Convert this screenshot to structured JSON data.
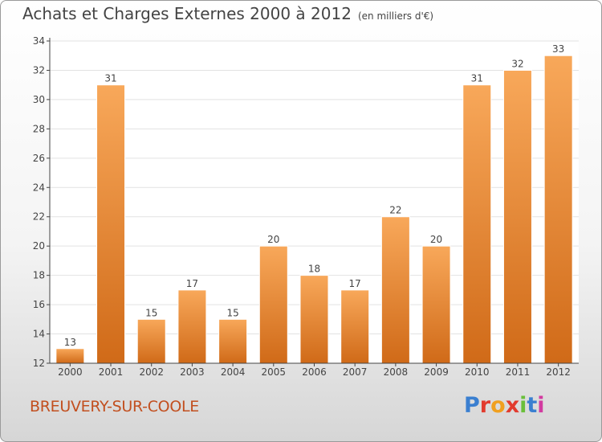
{
  "title": "Achats et Charges Externes 2000 à 2012",
  "unit_note": "(en milliers d'€)",
  "commune": "BREUVERY-SUR-COOLE",
  "logo": {
    "text": "Proxiti",
    "letters": [
      "P",
      "r",
      "o",
      "x",
      "i",
      "t",
      "i"
    ],
    "colors": [
      "#3a7fd0",
      "#e23b2e",
      "#f0a020",
      "#e23b2e",
      "#6abf3a",
      "#3a7fd0",
      "#d23ba0"
    ]
  },
  "colors": {
    "bar_light": "#f8a85a",
    "bar_dark": "#d06a18",
    "axis": "#444444",
    "grid": "#e2e2e2",
    "commune_text": "#c24f1f"
  },
  "chart_data": {
    "type": "bar",
    "categories": [
      "2000",
      "2001",
      "2002",
      "2003",
      "2004",
      "2005",
      "2006",
      "2007",
      "2008",
      "2009",
      "2010",
      "2011",
      "2012"
    ],
    "values": [
      13,
      31,
      15,
      17,
      15,
      20,
      18,
      17,
      22,
      20,
      31,
      32,
      33
    ],
    "ylim": [
      12,
      34
    ],
    "yticks": [
      12,
      14,
      16,
      18,
      20,
      22,
      24,
      26,
      28,
      30,
      32,
      34
    ],
    "grid": true,
    "data_labels": true
  }
}
